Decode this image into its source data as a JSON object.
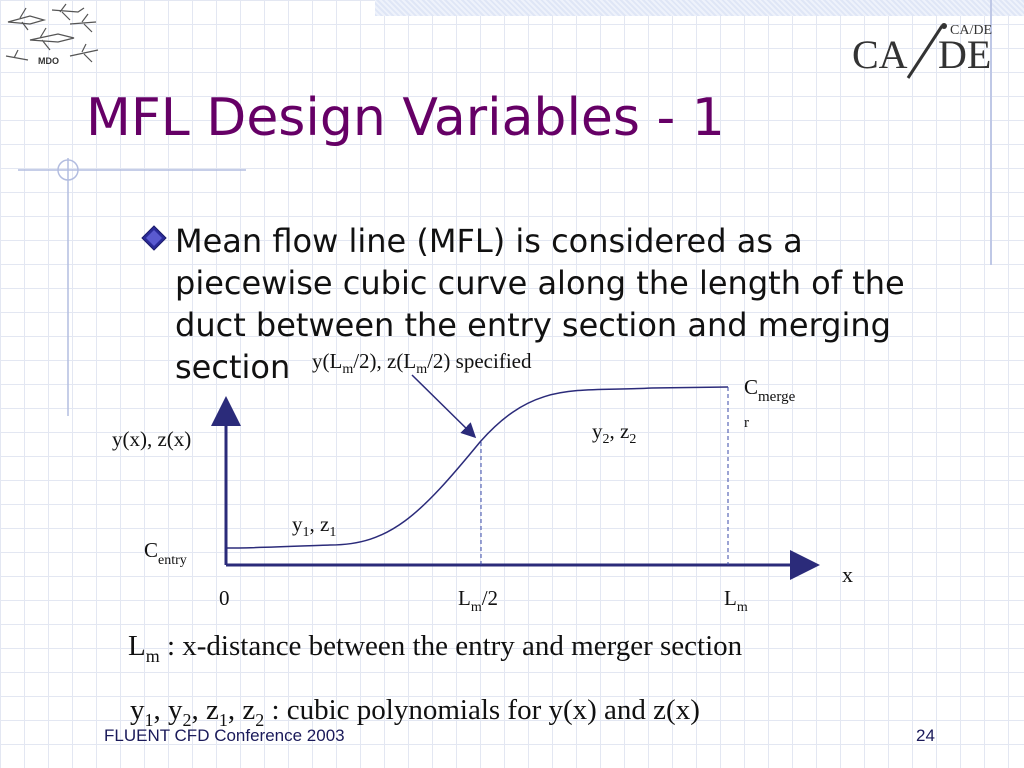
{
  "slide": {
    "title": "MFL Design Variables - 1",
    "bullet": "Mean flow line (MFL) is considered as a piecewise cubic curve along the length of the duct between the entry section and merging section"
  },
  "logos": {
    "mdo_text": "MDO",
    "cade_small": "CA/DE",
    "cade_large_left": "CA",
    "cade_large_right": "DE"
  },
  "diagram": {
    "annotation": {
      "prefix": "y(L",
      "sub1": "m",
      "mid": "/2), z(L",
      "sub2": "m",
      "suffix": "/2) specified"
    },
    "c_merger": {
      "base": "C",
      "sub_line1": "merge",
      "sub_line2": "r"
    },
    "c_entry": {
      "base": "C",
      "sub": "entry"
    },
    "y_axis_label": "y(x), z(x)",
    "x_axis_label": "x",
    "segment2": {
      "a": "y",
      "a_sub": "2",
      "sep": ", z",
      "b_sub": "2"
    },
    "segment1": {
      "a": "y",
      "a_sub": "1",
      "sep": ", z",
      "b_sub": "1"
    },
    "tick_zero": "0",
    "tick_half": {
      "base": "L",
      "sub": "m",
      "suffix": "/2"
    },
    "tick_full": {
      "base": "L",
      "sub": "m"
    },
    "colors": {
      "axis": "#2b2b7a",
      "curve": "#2b2b7a",
      "guide": "#3a4aa8"
    }
  },
  "definitions": {
    "lm_base": "L",
    "lm_sub": "m",
    "lm_text": " : x-distance between the entry and merger section",
    "poly_y": "y",
    "poly_1": "1",
    "poly_sep1": ", y",
    "poly_2": "2",
    "poly_sep2": ", z",
    "poly_3": "1",
    "poly_sep3": ", z",
    "poly_4": "2",
    "poly_text": " : cubic polynomials for y(x) and z(x)"
  },
  "footer": {
    "conference": "FLUENT CFD Conference 2003",
    "page": "24"
  },
  "colors": {
    "title": "#660066",
    "bullet": "#2b2b99"
  }
}
